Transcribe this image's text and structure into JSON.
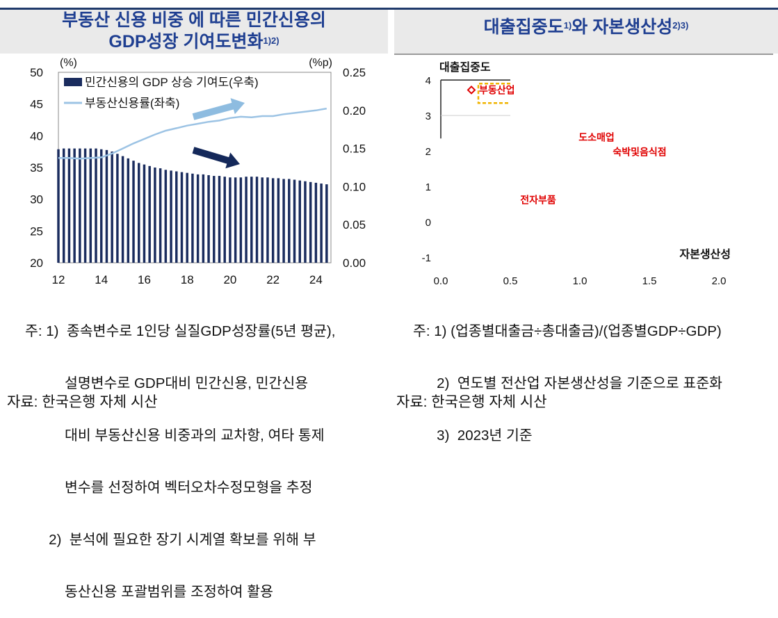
{
  "left_panel": {
    "title_line1": "부동산 신용 비중 에 따른 민간신용의",
    "title_line2": "GDP성장 기여도변화",
    "title_sup": "1)2)",
    "notes": [
      "주: 1)  종속변수로 1인당 실질GDP성장률(5년 평균),",
      "          설명변수로 GDP대비 민간신용, 민간신용",
      "          대비 부동산신용 비중과의 교차항, 여타 통제",
      "          변수를 선정하여 벡터오차수정모형을 추정",
      "      2)  분석에 필요한 장기 시계열 확보를 위해 부",
      "          동산신용 포괄범위를 조정하여 활용"
    ],
    "source": "자료: 한국은행 자체 시산"
  },
  "right_panel": {
    "title": "대출집중도",
    "title_sup1": "1)",
    "title_mid": "와 자본생산성",
    "title_sup2": "2)3)",
    "notes": [
      "주: 1) (업종별대출금÷총대출금)/(업종별GDP÷GDP)",
      "      2)  연도별 전산업 자본생산성을 기준으로 표준화",
      "      3)  2023년 기준"
    ],
    "source": "자료: 한국은행 자체 시산"
  },
  "chart_data": [
    {
      "type": "bar+line",
      "x_ticks": [
        "12",
        "14",
        "16",
        "18",
        "20",
        "22",
        "24"
      ],
      "x_range": [
        2012,
        2024.7
      ],
      "left_axis": {
        "unit": "(%)",
        "ylim": [
          20,
          50
        ],
        "ticks": [
          "20",
          "25",
          "30",
          "35",
          "40",
          "45",
          "50"
        ]
      },
      "right_axis": {
        "unit": "(%p)",
        "ylim": [
          0,
          0.25
        ],
        "ticks": [
          "0.00",
          "0.05",
          "0.10",
          "0.15",
          "0.20",
          "0.25"
        ]
      },
      "series": [
        {
          "name": "민간신용의 GDP 상승 기여도(우축)",
          "kind": "bar",
          "axis": "right",
          "color": "#1a2c5e",
          "x": [
            2012.0,
            2012.25,
            2012.5,
            2012.75,
            2013.0,
            2013.25,
            2013.5,
            2013.75,
            2014.0,
            2014.25,
            2014.5,
            2014.75,
            2015.0,
            2015.25,
            2015.5,
            2015.75,
            2016.0,
            2016.25,
            2016.5,
            2016.75,
            2017.0,
            2017.25,
            2017.5,
            2017.75,
            2018.0,
            2018.25,
            2018.5,
            2018.75,
            2019.0,
            2019.25,
            2019.5,
            2019.75,
            2020.0,
            2020.25,
            2020.5,
            2020.75,
            2021.0,
            2021.25,
            2021.5,
            2021.75,
            2022.0,
            2022.25,
            2022.5,
            2022.75,
            2023.0,
            2023.25,
            2023.5,
            2023.75,
            2024.0,
            2024.25,
            2024.5
          ],
          "values": [
            0.149,
            0.15,
            0.15,
            0.15,
            0.15,
            0.15,
            0.15,
            0.15,
            0.149,
            0.148,
            0.146,
            0.143,
            0.14,
            0.137,
            0.134,
            0.131,
            0.129,
            0.127,
            0.125,
            0.124,
            0.122,
            0.121,
            0.12,
            0.119,
            0.118,
            0.117,
            0.116,
            0.116,
            0.115,
            0.114,
            0.114,
            0.113,
            0.112,
            0.112,
            0.112,
            0.113,
            0.113,
            0.113,
            0.112,
            0.112,
            0.111,
            0.111,
            0.11,
            0.11,
            0.109,
            0.108,
            0.107,
            0.106,
            0.105,
            0.104,
            0.103
          ]
        },
        {
          "name": "부동산신용률(좌축)",
          "kind": "line",
          "axis": "left",
          "color": "#9cc3e4",
          "x": [
            2012.0,
            2012.5,
            2013.0,
            2013.5,
            2014.0,
            2014.5,
            2015.0,
            2015.5,
            2016.0,
            2016.5,
            2017.0,
            2017.5,
            2018.0,
            2018.5,
            2019.0,
            2019.5,
            2020.0,
            2020.5,
            2021.0,
            2021.5,
            2022.0,
            2022.5,
            2023.0,
            2023.5,
            2024.0,
            2024.5
          ],
          "values": [
            36.5,
            36.5,
            36.4,
            36.5,
            36.6,
            37.2,
            38.0,
            38.8,
            39.5,
            40.2,
            40.8,
            41.2,
            41.6,
            41.9,
            42.2,
            42.4,
            42.8,
            43.0,
            42.9,
            43.1,
            43.1,
            43.4,
            43.6,
            43.8,
            44.0,
            44.3
          ]
        }
      ],
      "annotations": {
        "up_arrow_color": "#8ebce0",
        "down_arrow_color": "#14285a"
      }
    },
    {
      "type": "scatter",
      "xlabel": "자본생산성",
      "ylabel": "대출집중도",
      "xlim": [
        0.0,
        2.2
      ],
      "ylim": [
        -1.2,
        4.2
      ],
      "x_ticks": [
        "0.0",
        "0.5",
        "1.0",
        "1.5",
        "2.0"
      ],
      "y_ticks": [
        "-1",
        "0",
        "1",
        "2",
        "3",
        "4"
      ],
      "points": [
        {
          "label": "부동산업",
          "x": 0.22,
          "y": 3.72,
          "marker": "diamond",
          "highlight": true
        },
        {
          "label": "도소매업",
          "x": 1.12,
          "y": 2.38
        },
        {
          "label": "숙박및음식점",
          "x": 1.43,
          "y": 1.97
        },
        {
          "label": "전자부품",
          "x": 0.7,
          "y": 0.62
        }
      ],
      "label_color": "#e00000",
      "highlight_box_color": "#f0b400"
    }
  ]
}
